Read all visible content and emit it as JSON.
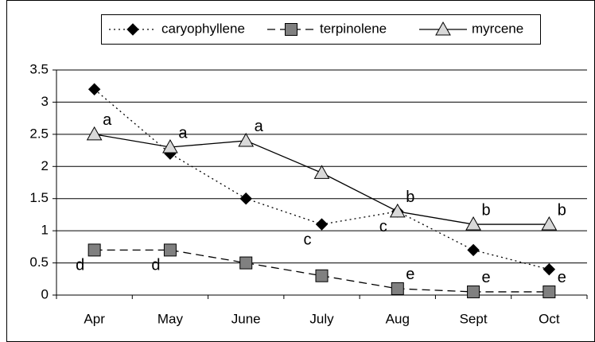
{
  "chart_data": {
    "type": "line",
    "categories": [
      "Apr",
      "May",
      "June",
      "July",
      "Aug",
      "Sept",
      "Oct"
    ],
    "series": [
      {
        "name": "caryophyllene",
        "color": "#000000",
        "values": [
          3.2,
          2.2,
          1.5,
          1.1,
          1.3,
          0.7,
          0.4
        ],
        "labels": [
          null,
          null,
          null,
          "c",
          "c",
          null,
          null
        ]
      },
      {
        "name": "terpinolene",
        "color": "#808080",
        "values": [
          0.7,
          0.7,
          0.5,
          0.3,
          0.1,
          0.05,
          0.05
        ],
        "labels": [
          "d",
          "d",
          null,
          null,
          "e",
          "e",
          "e"
        ]
      },
      {
        "name": "myrcene",
        "color": "#d9d9d9",
        "values": [
          2.5,
          2.3,
          2.4,
          1.9,
          1.3,
          1.1,
          1.1
        ],
        "labels": [
          "a",
          "a",
          "a",
          null,
          "b",
          "b",
          "b"
        ]
      }
    ],
    "ylim": [
      0,
      3.5
    ],
    "yticks": [
      0,
      0.5,
      1,
      1.5,
      2,
      2.5,
      3,
      3.5
    ],
    "grid": true,
    "legend": "top"
  }
}
